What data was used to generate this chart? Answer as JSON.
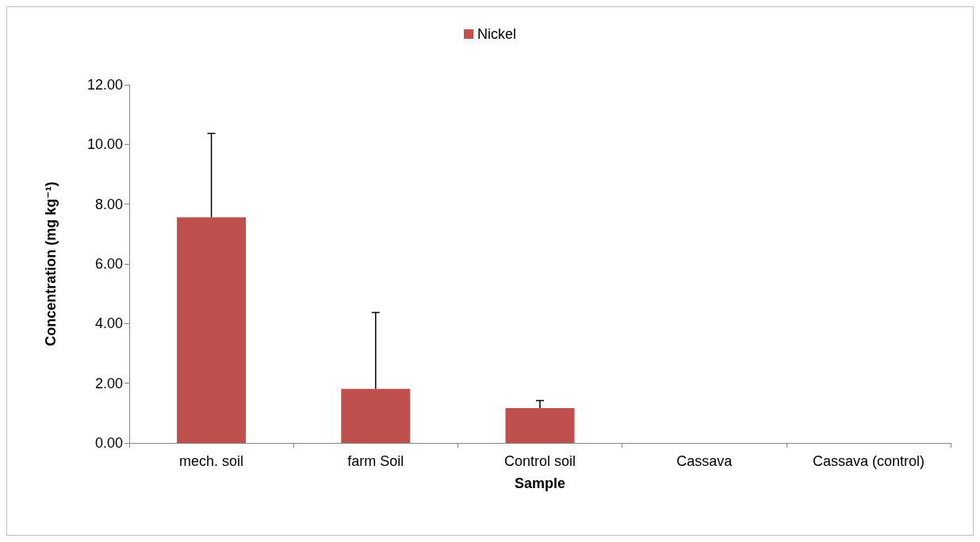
{
  "chart_data": {
    "type": "bar",
    "xlabel": "Sample",
    "ylabel": "Concentration (mg kg⁻¹)",
    "categories": [
      "mech. soil",
      "farm Soil",
      "Control soil",
      "Cassava",
      "Cassava (control)"
    ],
    "series": [
      {
        "name": "Nickel",
        "color": "#c0504d",
        "values": [
          7.56,
          1.81,
          1.17,
          null,
          null
        ],
        "errors": [
          [
            7.56,
            10.37
          ],
          [
            1.81,
            4.37
          ],
          [
            1.17,
            1.42
          ],
          null,
          null
        ]
      }
    ],
    "ylim": [
      0,
      12
    ],
    "yticks": [
      {
        "value": 0,
        "label": "0.00"
      },
      {
        "value": 2,
        "label": "2.00"
      },
      {
        "value": 4,
        "label": "4.00"
      },
      {
        "value": 6,
        "label": "6.00"
      },
      {
        "value": 8,
        "label": "8.00"
      },
      {
        "value": 10,
        "label": "10.00"
      },
      {
        "value": 12,
        "label": "12.00"
      }
    ],
    "grid": false,
    "legend": "top"
  }
}
